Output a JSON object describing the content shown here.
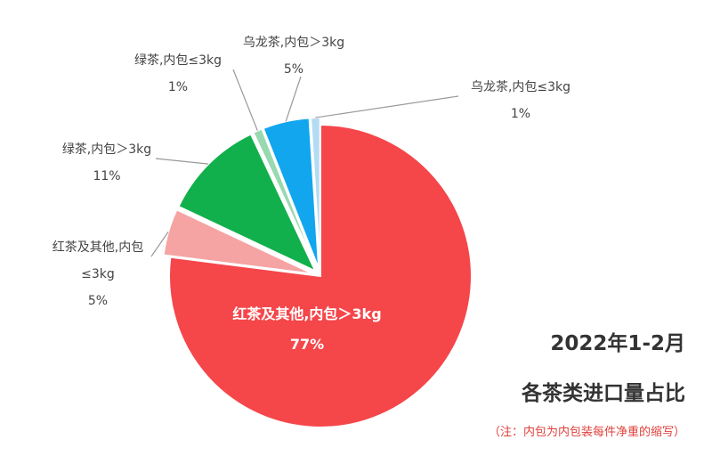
{
  "chart_data": {
    "type": "pie",
    "title": "各茶类进口量占比",
    "subtitle": "2022年1-2月",
    "note": "（注：内包为内包装每件净重的缩写）",
    "unit": "%",
    "slices": [
      {
        "label_lines": [
          "红茶及其他,内包＞3kg"
        ],
        "value_text": "77%",
        "value": 77,
        "color": "#f5464a"
      },
      {
        "label_lines": [
          "红茶及其他,内包",
          "≤3kg"
        ],
        "value_text": "5%",
        "value": 5,
        "color": "#f5a3a3"
      },
      {
        "label_lines": [
          "绿茶,内包＞3kg"
        ],
        "value_text": "11%",
        "value": 11,
        "color": "#12b04c"
      },
      {
        "label_lines": [
          "绿茶,内包≤3kg"
        ],
        "value_text": "1%",
        "value": 1,
        "color": "#98d9b0"
      },
      {
        "label_lines": [
          "乌龙茶,内包＞3kg"
        ],
        "value_text": "5%",
        "value": 5,
        "color": "#11a6ee"
      },
      {
        "label_lines": [
          "乌龙茶,内包≤3kg"
        ],
        "value_text": "1%",
        "value": 1,
        "color": "#b3dcf4"
      }
    ]
  }
}
